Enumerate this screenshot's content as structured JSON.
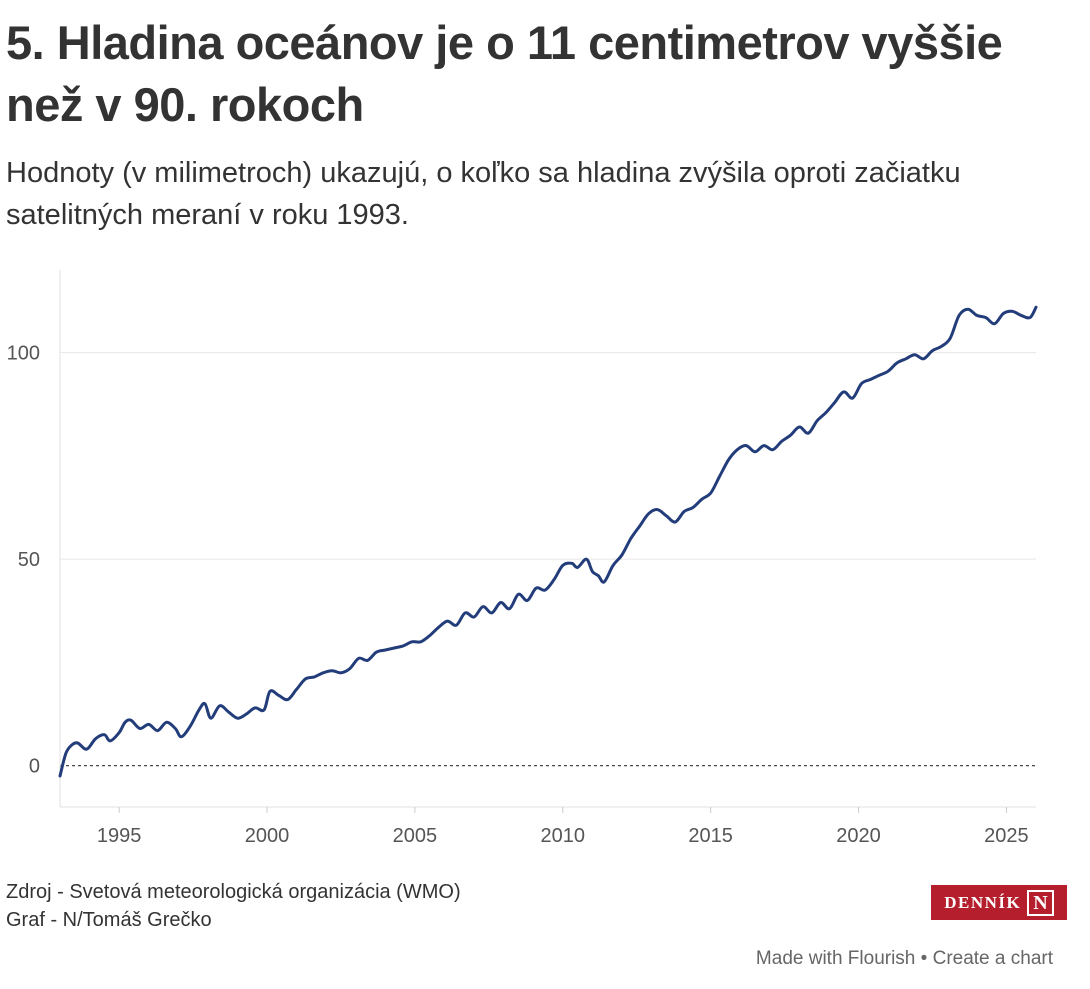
{
  "header": {
    "title": "5. Hladina oceánov je o 11 centimetrov vyššie než v 90. rokoch",
    "subtitle": "Hodnoty (v milimetroch) ukazujú, o koľko sa hladina zvýšila oproti začiatku satelitných meraní v roku 1993."
  },
  "chart_data": {
    "type": "line",
    "title": "5. Hladina oceánov je o 11 centimetrov vyššie než v 90. rokoch",
    "subtitle": "Hodnoty (v milimetroch) ukazujú, o koľko sa hladina zvýšila oproti začiatku satelitných meraní v roku 1993.",
    "xlim": [
      1993,
      2026
    ],
    "ylim": [
      -10,
      120
    ],
    "x_ticks": [
      1995,
      2000,
      2005,
      2010,
      2015,
      2020,
      2025
    ],
    "y_ticks": [
      0,
      50,
      100
    ],
    "reference_line": 0,
    "grid": true,
    "line_color": "#233d7b",
    "series": [
      {
        "x": [
          1993.0,
          1993.2,
          1993.4,
          1993.6,
          1993.9,
          1994.2,
          1994.5,
          1994.7,
          1995.0,
          1995.2,
          1995.4,
          1995.7,
          1996.0,
          1996.3,
          1996.6,
          1996.9,
          1997.1,
          1997.4,
          1997.7,
          1997.9,
          1998.1,
          1998.4,
          1998.7,
          1999.0,
          1999.3,
          1999.6,
          1999.9,
          2000.1,
          2000.4,
          2000.7,
          2001.0,
          2001.3,
          2001.6,
          2001.9,
          2002.2,
          2002.5,
          2002.8,
          2003.1,
          2003.4,
          2003.7,
          2004.0,
          2004.3,
          2004.6,
          2004.9,
          2005.2,
          2005.5,
          2005.8,
          2006.1,
          2006.4,
          2006.7,
          2007.0,
          2007.3,
          2007.6,
          2007.9,
          2008.2,
          2008.5,
          2008.8,
          2009.1,
          2009.4,
          2009.7,
          2010.0,
          2010.3,
          2010.5,
          2010.8,
          2011.0,
          2011.2,
          2011.4,
          2011.7,
          2012.0,
          2012.3,
          2012.6,
          2012.9,
          2013.2,
          2013.5,
          2013.8,
          2014.1,
          2014.4,
          2014.7,
          2015.0,
          2015.3,
          2015.6,
          2015.9,
          2016.2,
          2016.5,
          2016.8,
          2017.1,
          2017.4,
          2017.7,
          2018.0,
          2018.3,
          2018.6,
          2018.9,
          2019.2,
          2019.5,
          2019.8,
          2020.1,
          2020.4,
          2020.7,
          2021.0,
          2021.3,
          2021.6,
          2021.9,
          2022.2,
          2022.5,
          2022.8,
          2023.1,
          2023.4,
          2023.7,
          2024.0,
          2024.3,
          2024.6,
          2024.9,
          2025.2,
          2025.5,
          2025.8,
          2026.0
        ],
        "values": [
          -2.5,
          3.0,
          5.0,
          5.5,
          4.0,
          6.5,
          7.5,
          6.0,
          8.0,
          10.5,
          11.0,
          9.0,
          10.0,
          8.5,
          10.5,
          9.0,
          7.0,
          9.5,
          13.5,
          15.0,
          11.5,
          14.5,
          13.0,
          11.5,
          12.5,
          14.0,
          13.5,
          18.0,
          17.0,
          16.0,
          18.5,
          21.0,
          21.5,
          22.5,
          23.0,
          22.5,
          23.5,
          26.0,
          25.5,
          27.5,
          28.0,
          28.5,
          29.0,
          30.0,
          30.0,
          31.5,
          33.5,
          35.0,
          34.0,
          37.0,
          36.0,
          38.5,
          37.0,
          39.5,
          38.0,
          41.5,
          40.0,
          43.0,
          42.5,
          45.0,
          48.5,
          49.0,
          48.0,
          50.0,
          47.0,
          46.0,
          44.5,
          48.5,
          51.0,
          55.0,
          58.0,
          61.0,
          62.0,
          60.5,
          59.0,
          61.5,
          62.5,
          64.5,
          66.0,
          70.0,
          74.0,
          76.5,
          77.5,
          76.0,
          77.5,
          76.5,
          78.5,
          80.0,
          82.0,
          80.5,
          83.5,
          85.5,
          88.0,
          90.5,
          89.0,
          92.5,
          93.5,
          94.5,
          95.5,
          97.5,
          98.5,
          99.5,
          98.5,
          100.5,
          101.5,
          103.5,
          109.0,
          110.5,
          109.0,
          108.5,
          107.0,
          109.5,
          110.0,
          109.0,
          108.5,
          111.0
        ]
      }
    ]
  },
  "footer": {
    "source_line": "Zdroj - Svetová meteorologická organizácia (WMO)",
    "author_line": "Graf - N/Tomáš Grečko",
    "logo_text": "DENNÍK",
    "logo_letter": "N",
    "made_with": "Made with Flourish",
    "separator": "•",
    "create_chart": "Create a chart"
  }
}
